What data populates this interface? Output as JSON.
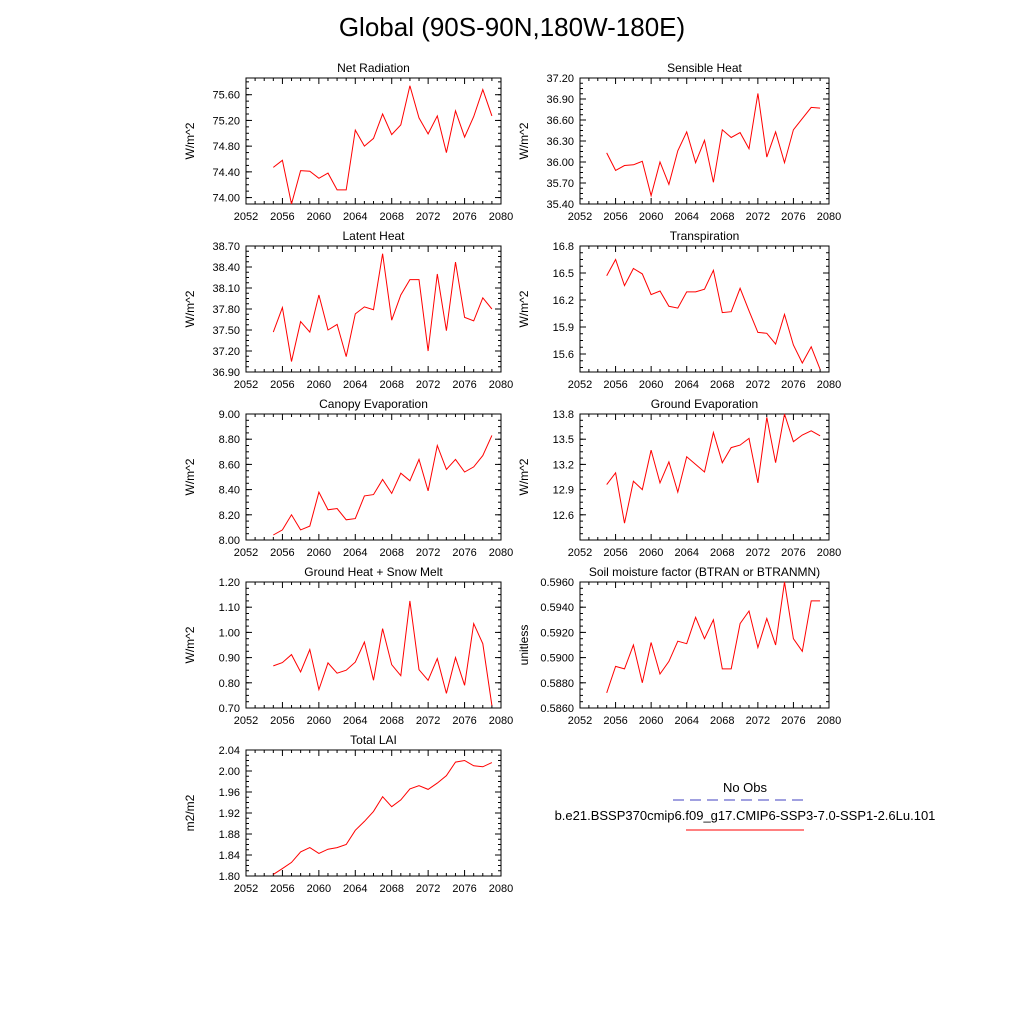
{
  "page": {
    "title": "Global (90S-90N,180W-180E)"
  },
  "colors": {
    "model_line": "#ff0000",
    "obs_line": "#4040c0",
    "axis": "#000000"
  },
  "legend": {
    "obs_label": "No Obs",
    "model_label": "b.e21.BSSP370cmip6.f09_g17.CMIP6-SSP3-7.0-SSP1-2.6Lu.101"
  },
  "chart_data": [
    {
      "type": "line",
      "title": "Net Radiation",
      "ylabel": "W/m^2",
      "xlim": [
        2052,
        2080
      ],
      "ylim": [
        73.9,
        75.86
      ],
      "xticks": [
        "2052",
        "2056",
        "2060",
        "2064",
        "2068",
        "2072",
        "2076",
        "2080"
      ],
      "yticks": [
        "74.00",
        "74.40",
        "74.80",
        "75.20",
        "75.60"
      ],
      "x": [
        2055,
        2056,
        2057,
        2058,
        2059,
        2060,
        2061,
        2062,
        2063,
        2064,
        2065,
        2066,
        2067,
        2068,
        2069,
        2070,
        2071,
        2072,
        2073,
        2074,
        2075,
        2076,
        2077,
        2078,
        2079
      ],
      "series": [
        {
          "values": [
            74.47,
            74.58,
            73.9,
            74.42,
            74.41,
            74.3,
            74.38,
            74.12,
            74.12,
            75.05,
            74.8,
            74.92,
            75.3,
            74.98,
            75.13,
            75.74,
            75.24,
            74.99,
            75.27,
            74.7,
            75.35,
            74.94,
            75.26,
            75.68,
            75.27
          ]
        }
      ]
    },
    {
      "type": "line",
      "title": "Sensible Heat",
      "ylabel": "W/m^2",
      "xlim": [
        2052,
        2080
      ],
      "ylim": [
        35.4,
        37.2
      ],
      "xticks": [
        "2052",
        "2056",
        "2060",
        "2064",
        "2068",
        "2072",
        "2076",
        "2080"
      ],
      "yticks": [
        "35.40",
        "35.70",
        "36.00",
        "36.30",
        "36.60",
        "36.90",
        "37.20"
      ],
      "x": [
        2055,
        2056,
        2057,
        2058,
        2059,
        2060,
        2061,
        2062,
        2063,
        2064,
        2065,
        2066,
        2067,
        2068,
        2069,
        2070,
        2071,
        2072,
        2073,
        2074,
        2075,
        2076,
        2077,
        2078,
        2079
      ],
      "series": [
        {
          "values": [
            36.13,
            35.88,
            35.95,
            35.96,
            36.01,
            35.52,
            36.0,
            35.68,
            36.16,
            36.43,
            35.99,
            36.31,
            35.71,
            36.46,
            36.35,
            36.42,
            36.19,
            36.98,
            36.07,
            36.43,
            35.99,
            36.46,
            36.62,
            36.78,
            36.77
          ]
        }
      ]
    },
    {
      "type": "line",
      "title": "Latent Heat",
      "ylabel": "W/m^2",
      "xlim": [
        2052,
        2080
      ],
      "ylim": [
        36.9,
        38.7
      ],
      "xticks": [
        "2052",
        "2056",
        "2060",
        "2064",
        "2068",
        "2072",
        "2076",
        "2080"
      ],
      "yticks": [
        "36.90",
        "37.20",
        "37.50",
        "37.80",
        "38.10",
        "38.40",
        "38.70"
      ],
      "x": [
        2055,
        2056,
        2057,
        2058,
        2059,
        2060,
        2061,
        2062,
        2063,
        2064,
        2065,
        2066,
        2067,
        2068,
        2069,
        2070,
        2071,
        2072,
        2073,
        2074,
        2075,
        2076,
        2077,
        2078,
        2079
      ],
      "series": [
        {
          "values": [
            37.47,
            37.82,
            37.05,
            37.62,
            37.47,
            38.0,
            37.5,
            37.58,
            37.12,
            37.73,
            37.83,
            37.79,
            38.59,
            37.64,
            38.0,
            38.22,
            38.22,
            37.2,
            38.3,
            37.49,
            38.47,
            37.68,
            37.63,
            37.96,
            37.8
          ]
        }
      ]
    },
    {
      "type": "line",
      "title": "Transpiration",
      "ylabel": "W/m^2",
      "xlim": [
        2052,
        2080
      ],
      "ylim": [
        15.4,
        16.8
      ],
      "xticks": [
        "2052",
        "2056",
        "2060",
        "2064",
        "2068",
        "2072",
        "2076",
        "2080"
      ],
      "yticks": [
        "15.6",
        "15.9",
        "16.2",
        "16.5",
        "16.8"
      ],
      "x": [
        2055,
        2056,
        2057,
        2058,
        2059,
        2060,
        2061,
        2062,
        2063,
        2064,
        2065,
        2066,
        2067,
        2068,
        2069,
        2070,
        2071,
        2072,
        2073,
        2074,
        2075,
        2076,
        2077,
        2078,
        2079
      ],
      "series": [
        {
          "values": [
            16.47,
            16.65,
            16.36,
            16.55,
            16.49,
            16.26,
            16.3,
            16.13,
            16.11,
            16.29,
            16.29,
            16.32,
            16.53,
            16.06,
            16.07,
            16.33,
            16.08,
            15.84,
            15.83,
            15.71,
            16.04,
            15.7,
            15.5,
            15.68,
            15.43
          ]
        }
      ]
    },
    {
      "type": "line",
      "title": "Canopy Evaporation",
      "ylabel": "W/m^2",
      "xlim": [
        2052,
        2080
      ],
      "ylim": [
        8.0,
        9.0
      ],
      "xticks": [
        "2052",
        "2056",
        "2060",
        "2064",
        "2068",
        "2072",
        "2076",
        "2080"
      ],
      "yticks": [
        "8.00",
        "8.20",
        "8.40",
        "8.60",
        "8.80",
        "9.00"
      ],
      "x": [
        2055,
        2056,
        2057,
        2058,
        2059,
        2060,
        2061,
        2062,
        2063,
        2064,
        2065,
        2066,
        2067,
        2068,
        2069,
        2070,
        2071,
        2072,
        2073,
        2074,
        2075,
        2076,
        2077,
        2078,
        2079
      ],
      "series": [
        {
          "values": [
            8.04,
            8.08,
            8.2,
            8.08,
            8.11,
            8.38,
            8.24,
            8.25,
            8.16,
            8.17,
            8.35,
            8.36,
            8.48,
            8.37,
            8.53,
            8.47,
            8.64,
            8.39,
            8.75,
            8.56,
            8.64,
            8.54,
            8.58,
            8.67,
            8.83
          ]
        }
      ]
    },
    {
      "type": "line",
      "title": "Ground Evaporation",
      "ylabel": "W/m^2",
      "xlim": [
        2052,
        2080
      ],
      "ylim": [
        12.3,
        13.8
      ],
      "xticks": [
        "2052",
        "2056",
        "2060",
        "2064",
        "2068",
        "2072",
        "2076",
        "2080"
      ],
      "yticks": [
        "12.6",
        "12.9",
        "13.2",
        "13.5",
        "13.8"
      ],
      "x": [
        2055,
        2056,
        2057,
        2058,
        2059,
        2060,
        2061,
        2062,
        2063,
        2064,
        2065,
        2066,
        2067,
        2068,
        2069,
        2070,
        2071,
        2072,
        2073,
        2074,
        2075,
        2076,
        2077,
        2078,
        2079
      ],
      "series": [
        {
          "values": [
            12.96,
            13.1,
            12.5,
            13.0,
            12.9,
            13.37,
            12.98,
            13.23,
            12.87,
            13.29,
            13.2,
            13.11,
            13.58,
            13.22,
            13.4,
            13.43,
            13.51,
            12.98,
            13.76,
            13.22,
            13.8,
            13.47,
            13.55,
            13.6,
            13.54
          ]
        }
      ]
    },
    {
      "type": "line",
      "title": "Ground Heat + Snow Melt",
      "ylabel": "W/m^2",
      "xlim": [
        2052,
        2080
      ],
      "ylim": [
        0.7,
        1.2
      ],
      "xticks": [
        "2052",
        "2056",
        "2060",
        "2064",
        "2068",
        "2072",
        "2076",
        "2080"
      ],
      "yticks": [
        "0.70",
        "0.80",
        "0.90",
        "1.00",
        "1.10",
        "1.20"
      ],
      "x": [
        2055,
        2056,
        2057,
        2058,
        2059,
        2060,
        2061,
        2062,
        2063,
        2064,
        2065,
        2066,
        2067,
        2068,
        2069,
        2070,
        2071,
        2072,
        2073,
        2074,
        2075,
        2076,
        2077,
        2078,
        2079
      ],
      "series": [
        {
          "values": [
            0.867,
            0.88,
            0.912,
            0.843,
            0.932,
            0.773,
            0.879,
            0.838,
            0.85,
            0.882,
            0.962,
            0.81,
            1.015,
            0.872,
            0.828,
            1.125,
            0.852,
            0.81,
            0.896,
            0.758,
            0.9,
            0.79,
            1.035,
            0.955,
            0.71
          ]
        }
      ]
    },
    {
      "type": "line",
      "title": "Soil moisture factor (BTRAN or BTRANMN)",
      "ylabel": "unitless",
      "xlim": [
        2052,
        2080
      ],
      "ylim": [
        0.586,
        0.596
      ],
      "xticks": [
        "2052",
        "2056",
        "2060",
        "2064",
        "2068",
        "2072",
        "2076",
        "2080"
      ],
      "yticks": [
        "0.5860",
        "0.5880",
        "0.5900",
        "0.5920",
        "0.5940",
        "0.5960"
      ],
      "x": [
        2055,
        2056,
        2057,
        2058,
        2059,
        2060,
        2061,
        2062,
        2063,
        2064,
        2065,
        2066,
        2067,
        2068,
        2069,
        2070,
        2071,
        2072,
        2073,
        2074,
        2075,
        2076,
        2077,
        2078,
        2079
      ],
      "series": [
        {
          "values": [
            0.5872,
            0.5893,
            0.5891,
            0.591,
            0.588,
            0.5912,
            0.5887,
            0.5897,
            0.5913,
            0.5911,
            0.5932,
            0.5915,
            0.593,
            0.5891,
            0.5891,
            0.5927,
            0.5937,
            0.5908,
            0.5931,
            0.591,
            0.596,
            0.5915,
            0.5905,
            0.5945,
            0.5945
          ]
        }
      ]
    },
    {
      "type": "line",
      "title": "Total LAI",
      "ylabel": "m2/m2",
      "xlim": [
        2052,
        2080
      ],
      "ylim": [
        1.8,
        2.04
      ],
      "xticks": [
        "2052",
        "2056",
        "2060",
        "2064",
        "2068",
        "2072",
        "2076",
        "2080"
      ],
      "yticks": [
        "1.80",
        "1.84",
        "1.88",
        "1.92",
        "1.96",
        "2.00",
        "2.04"
      ],
      "x": [
        2055,
        2056,
        2057,
        2058,
        2059,
        2060,
        2061,
        2062,
        2063,
        2064,
        2065,
        2066,
        2067,
        2068,
        2069,
        2070,
        2071,
        2072,
        2073,
        2074,
        2075,
        2076,
        2077,
        2078,
        2079
      ],
      "series": [
        {
          "values": [
            1.803,
            1.814,
            1.826,
            1.846,
            1.854,
            1.843,
            1.851,
            1.854,
            1.86,
            1.887,
            1.904,
            1.923,
            1.951,
            1.932,
            1.945,
            1.966,
            1.972,
            1.965,
            1.977,
            1.991,
            2.017,
            2.02,
            2.01,
            2.008,
            2.016
          ]
        }
      ]
    }
  ]
}
